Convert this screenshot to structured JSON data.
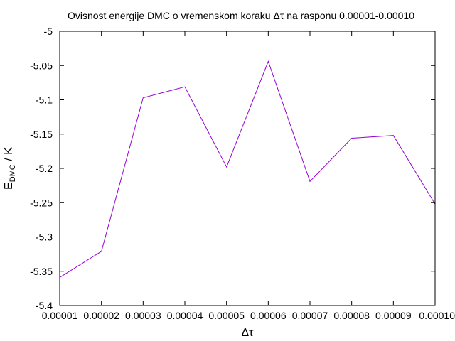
{
  "colors": {
    "series": "#9400d3",
    "axis": "#000000",
    "background": "#ffffff"
  },
  "chart_data": {
    "type": "line",
    "title": "Ovisnost energije DMC o vremenskom koraku Δτ na rasponu 0.00001-0.00010",
    "xlabel": "Δτ",
    "ylabel": {
      "main": "E",
      "subscript": "DMC",
      "suffix": " / K"
    },
    "xlim": [
      1e-05,
      0.0001
    ],
    "ylim": [
      -5.4,
      -5.0
    ],
    "grid": false,
    "legend": "none",
    "x_ticks": [
      1e-05,
      2e-05,
      3e-05,
      4e-05,
      5e-05,
      6e-05,
      7e-05,
      8e-05,
      9e-05,
      0.0001
    ],
    "x_tick_labels": [
      "0.00001",
      "0.00002",
      "0.00003",
      "0.00004",
      "0.00005",
      "0.00006",
      "0.00007",
      "0.00008",
      "0.00009",
      "0.00010"
    ],
    "y_ticks": [
      -5.4,
      -5.35,
      -5.3,
      -5.25,
      -5.2,
      -5.15,
      -5.1,
      -5.05,
      -5.0
    ],
    "y_tick_labels": [
      "-5.4",
      "-5.35",
      "-5.3",
      "-5.25",
      "-5.2",
      "-5.15",
      "-5.1",
      "-5.05",
      "-5"
    ],
    "series": [
      {
        "x": [
          1e-05,
          2e-05,
          3e-05,
          4e-05,
          5e-05,
          6e-05,
          7e-05,
          8e-05,
          9e-05,
          0.0001
        ],
        "y": [
          -5.359,
          -5.321,
          -5.097,
          -5.081,
          -5.198,
          -5.044,
          -5.219,
          -5.156,
          -5.152,
          -5.252
        ]
      }
    ]
  }
}
